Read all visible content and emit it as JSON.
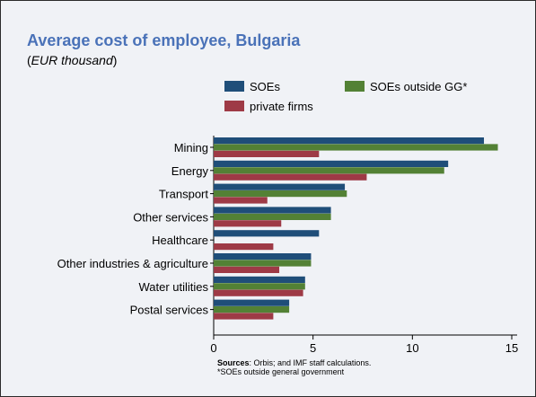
{
  "header": {
    "title": "Average cost of employee, Bulgaria",
    "subtitle_open": "(",
    "subtitle_unit": "EUR thousand",
    "subtitle_close": ")"
  },
  "footer": {
    "sources_label": "Sources",
    "sources_text": ": Orbis; and IMF staff calculations.",
    "note": "*SOEs outside general government"
  },
  "colors": {
    "soes": "#1f4e79",
    "soes_outside_gg": "#538135",
    "private_firms": "#9e3a46",
    "title": "#4a72b8"
  },
  "chart_data": {
    "type": "bar",
    "orientation": "horizontal",
    "categories": [
      "Mining",
      "Energy",
      "Transport",
      "Other services",
      "Healthcare",
      "Other industries & agriculture",
      "Water utilities",
      "Postal services"
    ],
    "series": [
      {
        "name": "SOEs",
        "color": "#1f4e79",
        "values": [
          13.6,
          11.8,
          6.6,
          5.9,
          5.3,
          4.9,
          4.6,
          3.8
        ]
      },
      {
        "name": "SOEs outside GG*",
        "color": "#538135",
        "values": [
          14.3,
          11.6,
          6.7,
          5.9,
          null,
          4.9,
          4.6,
          3.8
        ]
      },
      {
        "name": "private firms",
        "color": "#9e3a46",
        "values": [
          5.3,
          7.7,
          2.7,
          3.4,
          3.0,
          3.3,
          4.5,
          3.0
        ]
      }
    ],
    "xlim": [
      0,
      15
    ],
    "xticks": [
      0,
      5,
      10,
      15
    ],
    "legend_position": "top"
  }
}
